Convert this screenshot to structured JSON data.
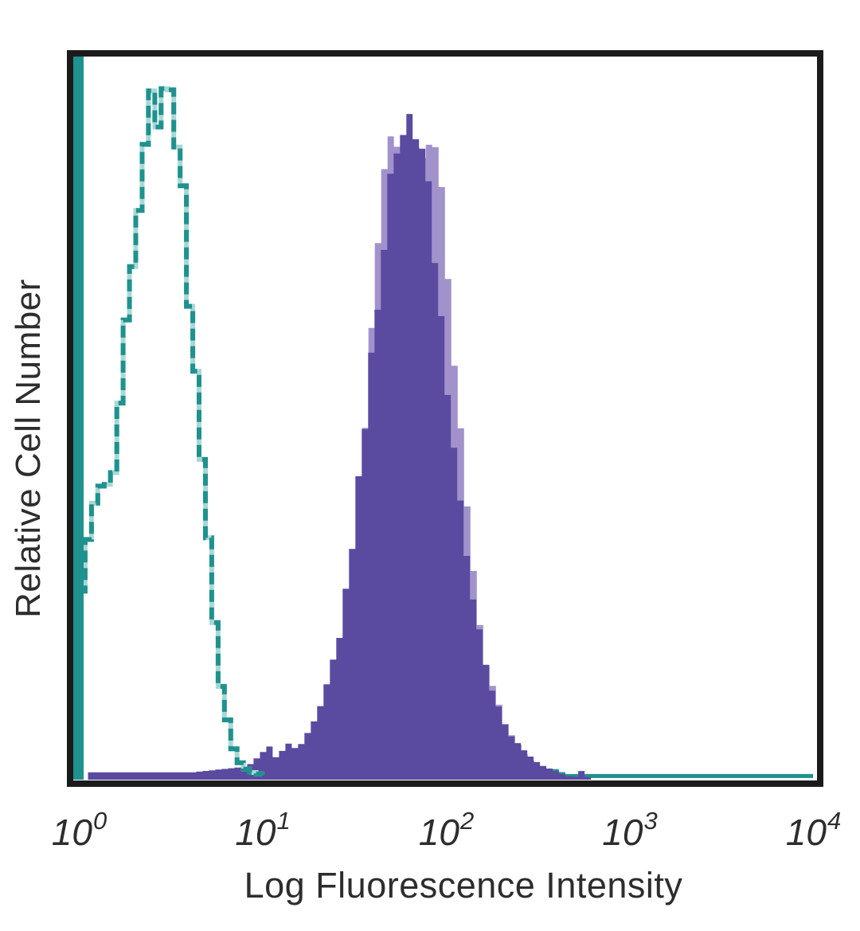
{
  "figure": {
    "kind": "flow-cytometry-histogram-overlay",
    "background": "#ffffff",
    "frame_color": "#1b1b1b"
  },
  "chart_data": {
    "type": "area",
    "subtype": "histogram-overlay",
    "title": "",
    "xlabel": "Log Fluorescence Intensity",
    "ylabel": "Relative Cell Number",
    "x_scale": "log10",
    "xlim_log": [
      0,
      4
    ],
    "ylim": [
      0,
      1
    ],
    "grid": false,
    "legend": "none",
    "x_ticks": [
      {
        "base": "10",
        "exp": "0",
        "log": 0
      },
      {
        "base": "10",
        "exp": "1",
        "log": 1
      },
      {
        "base": "10",
        "exp": "2",
        "log": 2
      },
      {
        "base": "10",
        "exp": "3",
        "log": 3
      },
      {
        "base": "10",
        "exp": "4",
        "log": 4
      }
    ],
    "y_ticks": [],
    "series": [
      {
        "name": "negative-control-open",
        "style": "open-dashed-outline",
        "color": "#1f918e",
        "gap_color": "#a8d8d5",
        "axis_spike_log": 0,
        "peak_log": 0.42,
        "peak_height": 0.945,
        "curve_points": [
          [
            0.0,
            0.26
          ],
          [
            0.03,
            0.33
          ],
          [
            0.06,
            0.36
          ],
          [
            0.095,
            0.4
          ],
          [
            0.125,
            0.385
          ],
          [
            0.16,
            0.41
          ],
          [
            0.2,
            0.5
          ],
          [
            0.25,
            0.63
          ],
          [
            0.3,
            0.75
          ],
          [
            0.35,
            0.855
          ],
          [
            0.395,
            0.93
          ],
          [
            0.43,
            0.945
          ],
          [
            0.455,
            0.91
          ],
          [
            0.48,
            0.935
          ],
          [
            0.51,
            0.89
          ],
          [
            0.545,
            0.815
          ],
          [
            0.58,
            0.7
          ],
          [
            0.615,
            0.565
          ],
          [
            0.65,
            0.44
          ],
          [
            0.69,
            0.315
          ],
          [
            0.73,
            0.195
          ],
          [
            0.77,
            0.11
          ],
          [
            0.81,
            0.055
          ],
          [
            0.855,
            0.025
          ],
          [
            0.91,
            0.011
          ],
          [
            1.0,
            0.006
          ]
        ],
        "baseline_points": [
          [
            1.0,
            0.006
          ],
          [
            1.42,
            0.005
          ],
          [
            1.46,
            0.013
          ],
          [
            1.5,
            0.005
          ],
          [
            1.95,
            0.006
          ],
          [
            2.0,
            0.014
          ],
          [
            2.04,
            0.005
          ],
          [
            2.28,
            0.012
          ],
          [
            2.33,
            0.005
          ],
          [
            2.58,
            0.012
          ],
          [
            2.62,
            0.005
          ],
          [
            3.0,
            0.005
          ],
          [
            3.5,
            0.005
          ],
          [
            4.0,
            0.005
          ]
        ]
      },
      {
        "name": "stained-underlay-light",
        "style": "filled",
        "color": "#a292cb",
        "peak_log": 1.8,
        "peak_height": 0.88,
        "points": [
          [
            1.3,
            0.05
          ],
          [
            1.4,
            0.14
          ],
          [
            1.48,
            0.3
          ],
          [
            1.54,
            0.48
          ],
          [
            1.59,
            0.64
          ],
          [
            1.63,
            0.78
          ],
          [
            1.67,
            0.87
          ],
          [
            1.72,
            0.875
          ],
          [
            1.76,
            0.87
          ],
          [
            1.8,
            0.88
          ],
          [
            1.84,
            0.875
          ],
          [
            1.88,
            0.875
          ],
          [
            1.92,
            0.87
          ],
          [
            1.95,
            0.82
          ],
          [
            1.99,
            0.7
          ],
          [
            2.04,
            0.54
          ],
          [
            2.09,
            0.4
          ],
          [
            2.14,
            0.27
          ],
          [
            2.19,
            0.165
          ],
          [
            2.25,
            0.115
          ],
          [
            2.32,
            0.068
          ],
          [
            2.4,
            0.038
          ],
          [
            2.48,
            0.018
          ],
          [
            2.56,
            0.008
          ],
          [
            2.62,
            0.003
          ]
        ]
      },
      {
        "name": "stained-primary-dark",
        "style": "filled",
        "color": "#5a4aa0",
        "peak_log": 1.79,
        "peak_height": 0.93,
        "points": [
          [
            0.05,
            0.01
          ],
          [
            0.6,
            0.01
          ],
          [
            0.9,
            0.018
          ],
          [
            0.97,
            0.032
          ],
          [
            1.01,
            0.05
          ],
          [
            1.05,
            0.028
          ],
          [
            1.12,
            0.05
          ],
          [
            1.17,
            0.04
          ],
          [
            1.23,
            0.065
          ],
          [
            1.29,
            0.095
          ],
          [
            1.35,
            0.14
          ],
          [
            1.41,
            0.21
          ],
          [
            1.46,
            0.3
          ],
          [
            1.51,
            0.41
          ],
          [
            1.56,
            0.53
          ],
          [
            1.6,
            0.64
          ],
          [
            1.64,
            0.74
          ],
          [
            1.68,
            0.81
          ],
          [
            1.715,
            0.85
          ],
          [
            1.745,
            0.89
          ],
          [
            1.77,
            0.925
          ],
          [
            1.79,
            0.93
          ],
          [
            1.815,
            0.905
          ],
          [
            1.84,
            0.875
          ],
          [
            1.87,
            0.84
          ],
          [
            1.9,
            0.78
          ],
          [
            1.93,
            0.7
          ],
          [
            1.96,
            0.615
          ],
          [
            2.0,
            0.515
          ],
          [
            2.04,
            0.425
          ],
          [
            2.08,
            0.345
          ],
          [
            2.12,
            0.27
          ],
          [
            2.16,
            0.21
          ],
          [
            2.2,
            0.155
          ],
          [
            2.25,
            0.11
          ],
          [
            2.3,
            0.078
          ],
          [
            2.36,
            0.052
          ],
          [
            2.43,
            0.033
          ],
          [
            2.5,
            0.02
          ],
          [
            2.58,
            0.012
          ],
          [
            2.63,
            0.006
          ],
          [
            2.68,
            0.003
          ],
          [
            2.73,
            0.014
          ],
          [
            2.76,
            0.002
          ],
          [
            2.79,
            0.001
          ]
        ]
      }
    ]
  }
}
